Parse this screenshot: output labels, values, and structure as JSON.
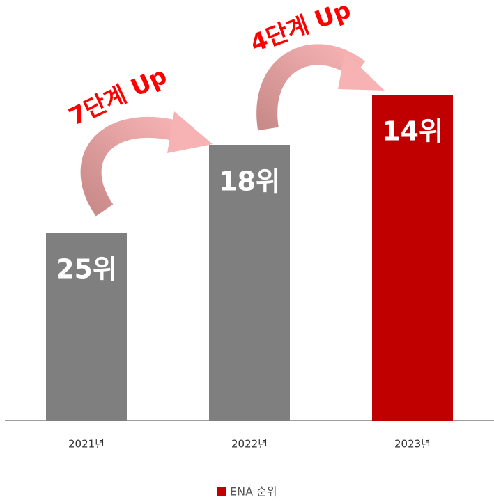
{
  "chart_data": {
    "type": "bar",
    "categories": [
      "2021년",
      "2022년",
      "2023년"
    ],
    "series": [
      {
        "name": "ENA 순위",
        "color": "#c00000",
        "values": [
          25,
          18,
          14
        ],
        "value_labels": [
          "25위",
          "18위",
          "14위"
        ],
        "bar_colors": [
          "#7f7f7f",
          "#7f7f7f",
          "#c00000"
        ]
      }
    ],
    "ylim": [
      40,
      0
    ],
    "annotations": [
      "7단계 Up",
      "4단계 Up"
    ]
  }
}
